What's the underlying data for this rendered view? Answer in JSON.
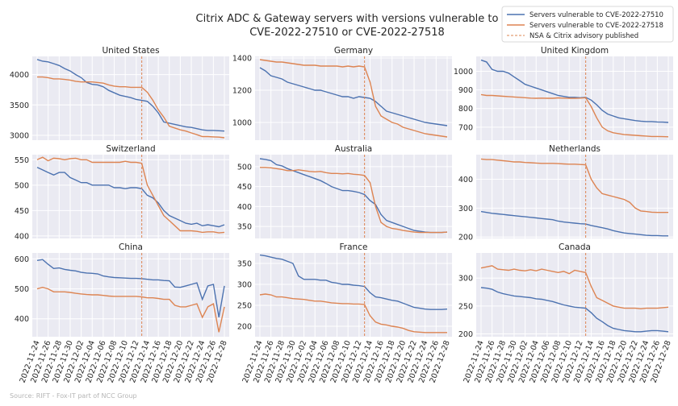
{
  "title_line1": "Citrix ADC & Gateway servers with versions vulnerable to",
  "title_line2": "CVE-2022-27510 or CVE-2022-27518",
  "source": "Source: RIFT - Fox-IT part of NCC Group",
  "legend": [
    {
      "label": "Servers vulnerable to CVE-2022-27510",
      "color": "#4c72b0",
      "style": "solid"
    },
    {
      "label": "Servers vulnerable to CVE-2022-27518",
      "color": "#dd8452",
      "style": "solid"
    },
    {
      "label": "NSA & Citrix advisory published",
      "color": "#dd8452",
      "style": "dashed"
    }
  ],
  "chart_data": {
    "type": "line",
    "x": [
      "2022-11-24",
      "2022-11-25",
      "2022-11-26",
      "2022-11-27",
      "2022-11-28",
      "2022-11-29",
      "2022-11-30",
      "2022-12-01",
      "2022-12-02",
      "2022-12-03",
      "2022-12-04",
      "2022-12-05",
      "2022-12-06",
      "2022-12-07",
      "2022-12-08",
      "2022-12-09",
      "2022-12-10",
      "2022-12-11",
      "2022-12-12",
      "2022-12-13",
      "2022-12-14",
      "2022-12-15",
      "2022-12-16",
      "2022-12-17",
      "2022-12-18",
      "2022-12-19",
      "2022-12-20",
      "2022-12-21",
      "2022-12-22",
      "2022-12-23",
      "2022-12-24",
      "2022-12-25",
      "2022-12-26",
      "2022-12-27",
      "2022-12-28"
    ],
    "xticks": [
      "2022-11-24",
      "2022-11-26",
      "2022-11-28",
      "2022-11-30",
      "2022-12-02",
      "2022-12-04",
      "2022-12-06",
      "2022-12-08",
      "2022-12-10",
      "2022-12-12",
      "2022-12-14",
      "2022-12-16",
      "2022-12-18",
      "2022-12-20",
      "2022-12-22",
      "2022-12-24",
      "2022-12-26",
      "2022-12-28"
    ],
    "advisory_date": "2022-12-13",
    "series_names": [
      "Servers vulnerable to CVE-2022-27510",
      "Servers vulnerable to CVE-2022-27518"
    ],
    "grid": true,
    "legend_placement": "top-right",
    "panels": [
      {
        "name": "United States",
        "ylim": [
          2920,
          4300
        ],
        "yticks": [
          3000,
          3500,
          4000
        ],
        "s27510": [
          4250,
          4220,
          4210,
          4180,
          4150,
          4100,
          4060,
          4000,
          3950,
          3870,
          3840,
          3830,
          3800,
          3740,
          3700,
          3660,
          3640,
          3620,
          3590,
          3575,
          3560,
          3480,
          3370,
          3220,
          3200,
          3180,
          3160,
          3140,
          3130,
          3110,
          3090,
          3080,
          3080,
          3075,
          3070
        ],
        "s27518": [
          3960,
          3960,
          3950,
          3930,
          3930,
          3920,
          3910,
          3890,
          3880,
          3880,
          3880,
          3870,
          3860,
          3830,
          3810,
          3800,
          3800,
          3790,
          3790,
          3790,
          3710,
          3580,
          3420,
          3300,
          3150,
          3120,
          3090,
          3070,
          3040,
          3010,
          2980,
          2980,
          2975,
          2970,
          2960
        ]
      },
      {
        "name": "Germany",
        "ylim": [
          890,
          1410
        ],
        "yticks": [
          1000,
          1200,
          1400
        ],
        "s27510": [
          1340,
          1320,
          1290,
          1280,
          1270,
          1250,
          1240,
          1230,
          1220,
          1210,
          1200,
          1200,
          1190,
          1180,
          1170,
          1160,
          1160,
          1150,
          1160,
          1155,
          1150,
          1130,
          1100,
          1070,
          1060,
          1050,
          1040,
          1030,
          1020,
          1010,
          1000,
          995,
          990,
          985,
          980
        ],
        "s27518": [
          1390,
          1385,
          1380,
          1375,
          1375,
          1370,
          1365,
          1360,
          1355,
          1355,
          1355,
          1350,
          1350,
          1350,
          1350,
          1345,
          1350,
          1345,
          1350,
          1345,
          1250,
          1100,
          1040,
          1020,
          1000,
          990,
          970,
          960,
          950,
          940,
          930,
          925,
          920,
          915,
          910
        ]
      },
      {
        "name": "United Kingdom",
        "ylim": [
          630,
          1080
        ],
        "yticks": [
          700,
          800,
          900,
          1000
        ],
        "s27510": [
          1060,
          1050,
          1010,
          1000,
          1000,
          990,
          970,
          950,
          930,
          920,
          910,
          900,
          890,
          880,
          870,
          865,
          860,
          860,
          858,
          860,
          845,
          820,
          790,
          770,
          760,
          750,
          745,
          740,
          735,
          732,
          730,
          730,
          728,
          727,
          725
        ],
        "s27518": [
          875,
          870,
          870,
          868,
          866,
          864,
          862,
          860,
          858,
          856,
          855,
          856,
          855,
          855,
          857,
          856,
          855,
          855,
          856,
          858,
          810,
          750,
          700,
          680,
          670,
          665,
          660,
          658,
          656,
          654,
          652,
          650,
          650,
          649,
          648
        ]
      },
      {
        "name": "Switzerland",
        "ylim": [
          395,
          560
        ],
        "yticks": [
          400,
          450,
          500,
          550
        ],
        "s27510": [
          535,
          530,
          525,
          520,
          525,
          525,
          515,
          510,
          505,
          505,
          500,
          500,
          500,
          500,
          495,
          495,
          493,
          495,
          495,
          493,
          480,
          475,
          465,
          450,
          440,
          435,
          430,
          425,
          423,
          425,
          420,
          422,
          420,
          418,
          422
        ],
        "s27518": [
          550,
          555,
          548,
          553,
          552,
          550,
          552,
          553,
          550,
          550,
          545,
          545,
          545,
          545,
          545,
          545,
          547,
          545,
          545,
          543,
          500,
          480,
          460,
          440,
          430,
          420,
          410,
          410,
          410,
          409,
          407,
          408,
          408,
          406,
          407
        ]
      },
      {
        "name": "Australia",
        "ylim": [
          320,
          530
        ],
        "yticks": [
          350,
          400,
          450,
          500
        ],
        "s27510": [
          520,
          518,
          515,
          505,
          502,
          495,
          490,
          485,
          480,
          475,
          470,
          465,
          458,
          450,
          445,
          440,
          440,
          438,
          435,
          430,
          415,
          405,
          380,
          365,
          360,
          355,
          350,
          345,
          340,
          338,
          336,
          335,
          335,
          335,
          336
        ],
        "s27518": [
          498,
          498,
          497,
          495,
          493,
          490,
          490,
          492,
          490,
          488,
          487,
          488,
          485,
          483,
          483,
          482,
          483,
          481,
          480,
          478,
          460,
          400,
          360,
          350,
          345,
          343,
          340,
          338,
          336,
          335,
          335,
          335,
          335,
          335,
          336
        ]
      },
      {
        "name": "Netherlands",
        "ylim": [
          195,
          485
        ],
        "yticks": [
          200,
          300,
          400
        ],
        "s27510": [
          288,
          285,
          282,
          280,
          278,
          276,
          274,
          272,
          270,
          268,
          266,
          264,
          262,
          260,
          255,
          252,
          250,
          248,
          246,
          245,
          240,
          236,
          232,
          228,
          222,
          218,
          214,
          212,
          210,
          208,
          206,
          205,
          205,
          204,
          204
        ],
        "s27518": [
          470,
          468,
          468,
          466,
          464,
          462,
          460,
          460,
          458,
          457,
          456,
          455,
          455,
          455,
          454,
          453,
          452,
          452,
          451,
          450,
          400,
          370,
          350,
          345,
          340,
          335,
          330,
          320,
          300,
          290,
          288,
          286,
          285,
          285,
          285
        ]
      },
      {
        "name": "China",
        "ylim": [
          340,
          620
        ],
        "yticks": [
          400,
          500,
          600
        ],
        "s27510": [
          595,
          598,
          582,
          568,
          570,
          565,
          562,
          560,
          555,
          553,
          552,
          550,
          543,
          540,
          538,
          537,
          536,
          535,
          535,
          534,
          532,
          530,
          530,
          528,
          527,
          506,
          505,
          510,
          515,
          520,
          465,
          510,
          515,
          405,
          510
        ],
        "s27518": [
          500,
          505,
          500,
          490,
          490,
          490,
          488,
          485,
          483,
          481,
          480,
          480,
          478,
          476,
          475,
          475,
          475,
          475,
          475,
          473,
          470,
          470,
          468,
          465,
          465,
          445,
          440,
          440,
          445,
          450,
          405,
          440,
          450,
          355,
          440
        ]
      },
      {
        "name": "France",
        "ylim": [
          175,
          375
        ],
        "yticks": [
          200,
          250,
          300,
          350
        ],
        "s27510": [
          370,
          368,
          365,
          362,
          360,
          355,
          350,
          320,
          312,
          312,
          312,
          310,
          310,
          305,
          303,
          300,
          300,
          298,
          297,
          295,
          280,
          270,
          268,
          265,
          262,
          260,
          255,
          250,
          245,
          243,
          241,
          240,
          240,
          240,
          241
        ],
        "s27518": [
          275,
          277,
          275,
          270,
          270,
          268,
          266,
          265,
          264,
          262,
          260,
          260,
          258,
          256,
          255,
          254,
          254,
          253,
          253,
          252,
          225,
          210,
          205,
          203,
          200,
          198,
          195,
          190,
          187,
          186,
          185,
          185,
          185,
          185,
          185
        ]
      },
      {
        "name": "Canada",
        "ylim": [
          195,
          345
        ],
        "yticks": [
          200,
          250,
          300
        ],
        "s27510": [
          283,
          282,
          280,
          275,
          272,
          270,
          268,
          267,
          266,
          265,
          263,
          262,
          260,
          258,
          255,
          252,
          250,
          248,
          247,
          246,
          238,
          228,
          222,
          215,
          210,
          208,
          206,
          205,
          204,
          204,
          205,
          206,
          206,
          205,
          204
        ],
        "s27518": [
          318,
          320,
          322,
          316,
          315,
          314,
          316,
          314,
          313,
          315,
          313,
          316,
          314,
          312,
          310,
          312,
          308,
          314,
          312,
          310,
          285,
          265,
          260,
          255,
          250,
          248,
          246,
          246,
          246,
          245,
          246,
          246,
          246,
          247,
          248
        ]
      }
    ]
  }
}
